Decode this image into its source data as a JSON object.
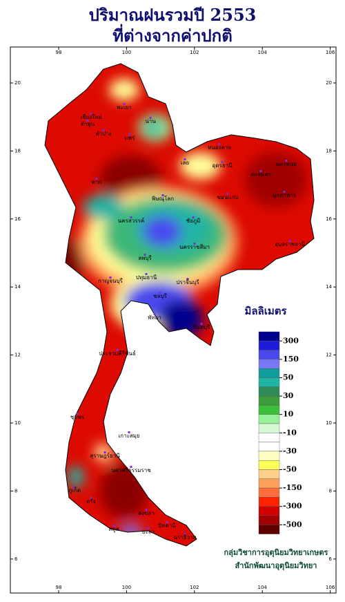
{
  "header": {
    "title_line1": "ปริมาณฝนรวมปี 2553",
    "title_line2": "ที่ต่างจากค่าปกติ"
  },
  "map": {
    "lon_ticks": [
      98,
      100,
      102,
      104,
      106
    ],
    "lat_ticks": [
      20,
      18,
      16,
      14,
      12,
      10,
      8,
      6
    ],
    "places": [
      "เชียงใหม่",
      "ลำพูน",
      "ลำปาง",
      "พะเยา",
      "น่าน",
      "แพร่",
      "หนองคาย",
      "อุดรธานี",
      "เลย",
      "นครพนม",
      "สกลนคร",
      "ขอนแก่น",
      "มุกดาหาร",
      "ตาก",
      "พิษณุโลก",
      "ชัยภูมิ",
      "นครสวรรค์",
      "ลพบุรี",
      "นครราชสีมา",
      "อุบลราชธานี",
      "กาญจนบุรี",
      "ปทุมธานี",
      "ชลบุรี",
      "ปราจีนบุรี",
      "พัทยา",
      "จันทบุรี",
      "ประจวบคีรีขันธ์",
      "ชุมพร",
      "เกาะสมุย",
      "สุราษฎร์ธานี",
      "นครศรีธรรมราช",
      "ภูเก็ต",
      "ตรัง",
      "สงขลา",
      "ปัตตานี",
      "นราธิวาส",
      "ยะลา",
      "สตูล"
    ]
  },
  "legend": {
    "title": "มิลลิเมตร",
    "labels": [
      300,
      150,
      50,
      30,
      10,
      -10,
      -30,
      -50,
      -150,
      -300,
      -500
    ],
    "colors": [
      "#00008c",
      "#1c1cd8",
      "#4848ee",
      "#7878f6",
      "#109c9c",
      "#20b4a4",
      "#2e8b57",
      "#3c9c3c",
      "#3cc03c",
      "#98f098",
      "#d4f8d4",
      "#ffffff",
      "#ffffff",
      "#ffffc4",
      "#ffff5a",
      "#ffd08c",
      "#ffa05a",
      "#ff6e3c",
      "#ff2200",
      "#d20000",
      "#a00000",
      "#5e0000"
    ]
  },
  "credits": {
    "line1": "กลุ่มวิชาการอุตุนิยมวิทยาเกษตร",
    "line2": "สำนักพัฒนาอุตุนิยมวิทยา"
  }
}
